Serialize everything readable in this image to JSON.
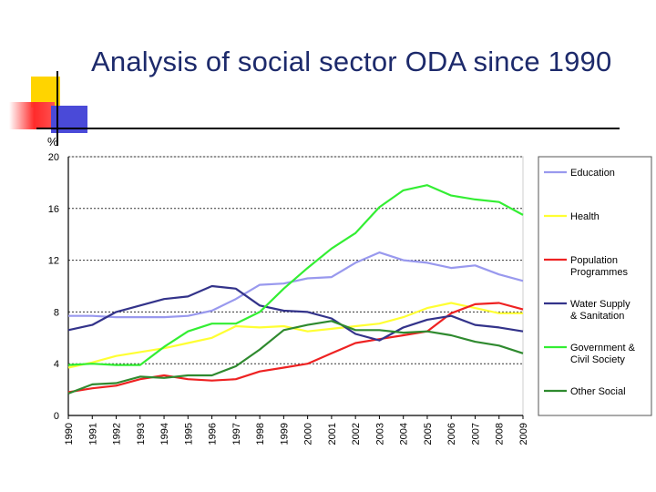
{
  "slide": {
    "title": "Analysis of social sector ODA since 1990"
  },
  "chart_data": {
    "type": "line",
    "ylabel": "%",
    "ylim": [
      0,
      20
    ],
    "yticks": [
      0,
      4,
      8,
      12,
      16,
      20
    ],
    "grid": "horizontal",
    "legend_position": "right",
    "x": [
      "1990",
      "1991",
      "1992",
      "1993",
      "1994",
      "1995",
      "1996",
      "1997",
      "1998",
      "1999",
      "2000",
      "2001",
      "2002",
      "2003",
      "2004",
      "2005",
      "2006",
      "2007",
      "2008",
      "2009"
    ],
    "series": [
      {
        "name": "Education",
        "color": "#9999ee",
        "values": [
          7.7,
          7.7,
          7.6,
          7.6,
          7.6,
          7.7,
          8.1,
          9.0,
          10.1,
          10.2,
          10.6,
          10.7,
          11.8,
          12.6,
          12.0,
          11.8,
          11.4,
          11.6,
          10.9,
          10.4
        ]
      },
      {
        "name": "Health",
        "color": "#ffff33",
        "values": [
          3.7,
          4.1,
          4.6,
          4.9,
          5.2,
          5.6,
          6.0,
          6.9,
          6.8,
          6.9,
          6.5,
          6.7,
          6.9,
          7.1,
          7.6,
          8.3,
          8.7,
          8.3,
          7.9,
          7.9
        ]
      },
      {
        "name": "Population Programmes",
        "color": "#ee2222",
        "values": [
          1.8,
          2.1,
          2.3,
          2.8,
          3.1,
          2.8,
          2.7,
          2.8,
          3.4,
          3.7,
          4.0,
          4.8,
          5.6,
          5.9,
          6.2,
          6.5,
          7.9,
          8.6,
          8.7,
          8.2
        ]
      },
      {
        "name": "Water Supply & Sanitation",
        "color": "#33338a",
        "values": [
          6.6,
          7.0,
          8.0,
          8.5,
          9.0,
          9.2,
          10.0,
          9.8,
          8.5,
          8.1,
          8.0,
          7.5,
          6.3,
          5.8,
          6.8,
          7.4,
          7.7,
          7.0,
          6.8,
          6.5
        ]
      },
      {
        "name": "Government & Civil Society",
        "color": "#33ee33",
        "values": [
          3.9,
          4.0,
          3.9,
          3.9,
          5.3,
          6.5,
          7.1,
          7.1,
          8.0,
          9.8,
          11.4,
          12.9,
          14.1,
          16.1,
          17.4,
          17.8,
          17.0,
          16.7,
          16.5,
          15.5
        ]
      },
      {
        "name": "Other Social",
        "color": "#2f8a2f",
        "values": [
          1.7,
          2.4,
          2.5,
          3.0,
          2.9,
          3.1,
          3.1,
          3.8,
          5.1,
          6.6,
          7.0,
          7.3,
          6.6,
          6.6,
          6.4,
          6.5,
          6.2,
          5.7,
          5.4,
          4.8
        ]
      }
    ]
  }
}
